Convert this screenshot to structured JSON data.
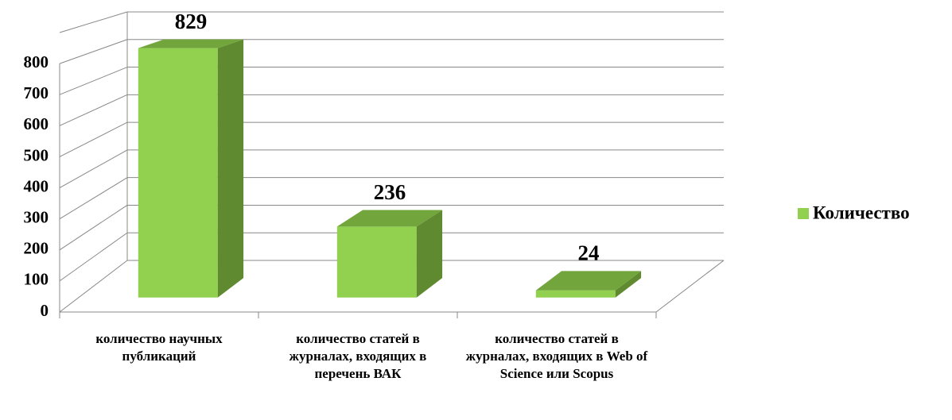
{
  "chart_data": {
    "type": "bar",
    "categories": [
      "количество научных публикаций",
      "количество статей в журналах, входящих в перечень ВАК",
      "количество статей в журналах, входящих в Web of Science или Scopus"
    ],
    "series": [
      {
        "name": "Количество",
        "color": "#92d050",
        "values": [
          829,
          236,
          24
        ]
      }
    ],
    "ylim": [
      0,
      900
    ],
    "yticks": [
      0,
      100,
      200,
      300,
      400,
      500,
      600,
      700,
      800
    ],
    "grid": true,
    "legend": "right"
  }
}
